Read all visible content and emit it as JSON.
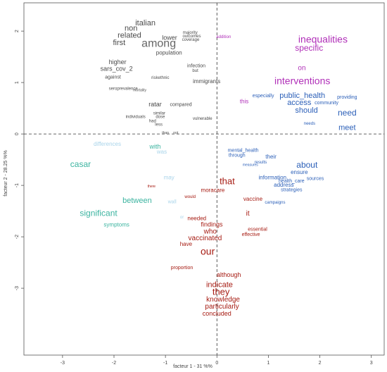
{
  "chart_data": {
    "type": "scatter",
    "title": "",
    "xlabel": "facteur 1 - 31 %%",
    "ylabel": "facteur 2 - 28.25 %%",
    "xlim": [
      -3.75,
      3.25
    ],
    "ylim": [
      -4.3,
      2.55
    ],
    "xticks": [
      -3,
      -2,
      -1,
      0,
      1,
      2,
      3
    ],
    "yticks": [
      -3,
      -2,
      -1,
      0,
      1,
      2
    ],
    "grid": false,
    "reference_lines": {
      "x": 0,
      "y": 0,
      "style": "dashed"
    },
    "colors": {
      "dark_gray": "#4a4a4a",
      "mid_gray": "#666666",
      "teal": "#3cb4a0",
      "light_blue": "#a9d4ea",
      "dark_red": "#a61b12",
      "blue": "#2b5fb8",
      "magenta": "#b02fb8",
      "axis": "#555555"
    },
    "points": [
      {
        "text": "italian",
        "x": -1.39,
        "y": 2.15,
        "size": 11,
        "color": "dark_gray"
      },
      {
        "text": "non",
        "x": -1.67,
        "y": 2.05,
        "size": 11,
        "color": "dark_gray"
      },
      {
        "text": "related",
        "x": -1.7,
        "y": 1.91,
        "size": 11,
        "color": "dark_gray"
      },
      {
        "text": "first",
        "x": -1.9,
        "y": 1.77,
        "size": 11,
        "color": "dark_gray"
      },
      {
        "text": "among",
        "x": -1.13,
        "y": 1.75,
        "size": 16,
        "color": "mid_gray"
      },
      {
        "text": "lower",
        "x": -0.92,
        "y": 1.86,
        "size": 9,
        "color": "dark_gray"
      },
      {
        "text": "majority",
        "x": -0.52,
        "y": 1.97,
        "size": 6,
        "color": "dark_gray"
      },
      {
        "text": "outcomes",
        "x": -0.49,
        "y": 1.9,
        "size": 6,
        "color": "dark_gray"
      },
      {
        "text": "coverage",
        "x": -0.51,
        "y": 1.83,
        "size": 6,
        "color": "dark_gray"
      },
      {
        "text": "population",
        "x": -0.93,
        "y": 1.57,
        "size": 8,
        "color": "dark_gray"
      },
      {
        "text": "higher",
        "x": -1.93,
        "y": 1.39,
        "size": 9,
        "color": "dark_gray"
      },
      {
        "text": "sars_cov_2",
        "x": -1.95,
        "y": 1.26,
        "size": 9,
        "color": "dark_gray"
      },
      {
        "text": "against",
        "x": -2.02,
        "y": 1.1,
        "size": 7,
        "color": "dark_gray"
      },
      {
        "text": "infection",
        "x": -0.4,
        "y": 1.32,
        "size": 7,
        "color": "dark_gray"
      },
      {
        "text": "but",
        "x": -0.42,
        "y": 1.23,
        "size": 6,
        "color": "dark_gray"
      },
      {
        "text": "riskethnic",
        "x": -1.1,
        "y": 1.09,
        "size": 6,
        "color": "dark_gray"
      },
      {
        "text": "immigrants",
        "x": -0.2,
        "y": 1.02,
        "size": 8,
        "color": "dark_gray"
      },
      {
        "text": "seroprevalence",
        "x": -1.82,
        "y": 0.88,
        "size": 6,
        "color": "dark_gray"
      },
      {
        "text": "mortality",
        "x": -1.5,
        "y": 0.85,
        "size": 5,
        "color": "dark_gray"
      },
      {
        "text": "ratar",
        "x": -1.2,
        "y": 0.57,
        "size": 9,
        "color": "dark_gray"
      },
      {
        "text": "compared",
        "x": -0.7,
        "y": 0.57,
        "size": 7,
        "color": "dark_gray"
      },
      {
        "text": "individuals",
        "x": -1.58,
        "y": 0.33,
        "size": 6,
        "color": "dark_gray"
      },
      {
        "text": "similar",
        "x": -1.12,
        "y": 0.4,
        "size": 6,
        "color": "dark_gray"
      },
      {
        "text": "dose",
        "x": -1.1,
        "y": 0.33,
        "size": 6,
        "color": "dark_gray"
      },
      {
        "text": "had",
        "x": -1.25,
        "y": 0.25,
        "size": 6,
        "color": "dark_gray"
      },
      {
        "text": "less",
        "x": -1.13,
        "y": 0.18,
        "size": 6,
        "color": "dark_gray"
      },
      {
        "text": "vulnerable",
        "x": -0.28,
        "y": 0.3,
        "size": 6,
        "color": "dark_gray"
      },
      {
        "text": "than",
        "x": -1.0,
        "y": 0.02,
        "size": 5,
        "color": "dark_gray"
      },
      {
        "text": "not",
        "x": -0.8,
        "y": 0.02,
        "size": 5,
        "color": "dark_gray"
      },
      {
        "text": "casar",
        "x": -2.65,
        "y": -0.6,
        "size": 12,
        "color": "teal"
      },
      {
        "text": "significant",
        "x": -2.3,
        "y": -1.55,
        "size": 12,
        "color": "teal"
      },
      {
        "text": "between",
        "x": -1.55,
        "y": -1.3,
        "size": 11,
        "color": "teal"
      },
      {
        "text": "with",
        "x": -1.2,
        "y": -0.25,
        "size": 9,
        "color": "teal"
      },
      {
        "text": "symptoms",
        "x": -1.95,
        "y": -1.77,
        "size": 8,
        "color": "teal"
      },
      {
        "text": "differences",
        "x": -2.13,
        "y": -0.2,
        "size": 8,
        "color": "light_blue"
      },
      {
        "text": "was",
        "x": -1.07,
        "y": -0.35,
        "size": 8,
        "color": "light_blue"
      },
      {
        "text": "may",
        "x": -0.93,
        "y": -0.85,
        "size": 8,
        "color": "light_blue"
      },
      {
        "text": "wall",
        "x": -0.87,
        "y": -1.32,
        "size": 7,
        "color": "light_blue"
      },
      {
        "text": "or",
        "x": -0.68,
        "y": -1.62,
        "size": 6,
        "color": "light_blue"
      },
      {
        "text": "this",
        "x": 0.53,
        "y": 0.63,
        "size": 8,
        "color": "magenta"
      },
      {
        "text": "inequalities",
        "x": 2.06,
        "y": 1.83,
        "size": 14,
        "color": "magenta"
      },
      {
        "text": "specific",
        "x": 1.79,
        "y": 1.66,
        "size": 12,
        "color": "magenta"
      },
      {
        "text": "on",
        "x": 1.65,
        "y": 1.28,
        "size": 10,
        "color": "magenta"
      },
      {
        "text": "interventions",
        "x": 1.66,
        "y": 1.02,
        "size": 14,
        "color": "magenta"
      },
      {
        "text": "addition",
        "x": 0.13,
        "y": 1.89,
        "size": 6,
        "color": "magenta"
      },
      {
        "text": "public_health",
        "x": 1.66,
        "y": 0.74,
        "size": 11,
        "color": "blue"
      },
      {
        "text": "access",
        "x": 1.6,
        "y": 0.6,
        "size": 11,
        "color": "blue"
      },
      {
        "text": "should",
        "x": 1.74,
        "y": 0.45,
        "size": 11,
        "color": "blue"
      },
      {
        "text": "need",
        "x": 2.53,
        "y": 0.4,
        "size": 12,
        "color": "blue"
      },
      {
        "text": "meet",
        "x": 2.53,
        "y": 0.12,
        "size": 11,
        "color": "blue"
      },
      {
        "text": "especially",
        "x": 0.9,
        "y": 0.74,
        "size": 7,
        "color": "blue"
      },
      {
        "text": "community",
        "x": 2.13,
        "y": 0.6,
        "size": 7,
        "color": "blue"
      },
      {
        "text": "providing",
        "x": 2.53,
        "y": 0.71,
        "size": 7,
        "color": "blue"
      },
      {
        "text": "needs",
        "x": 1.8,
        "y": 0.2,
        "size": 6,
        "color": "blue"
      },
      {
        "text": "about",
        "x": 1.75,
        "y": -0.61,
        "size": 12,
        "color": "blue"
      },
      {
        "text": "ensure",
        "x": 1.6,
        "y": -0.75,
        "size": 8,
        "color": "blue"
      },
      {
        "text": "information",
        "x": 1.08,
        "y": -0.85,
        "size": 8,
        "color": "blue"
      },
      {
        "text": "address",
        "x": 1.3,
        "y": -1.0,
        "size": 8,
        "color": "blue"
      },
      {
        "text": "sources",
        "x": 1.91,
        "y": -0.87,
        "size": 7,
        "color": "blue"
      },
      {
        "text": "health_care",
        "x": 1.45,
        "y": -0.92,
        "size": 7,
        "color": "blue"
      },
      {
        "text": "strategies",
        "x": 1.45,
        "y": -1.09,
        "size": 7,
        "color": "blue"
      },
      {
        "text": "their",
        "x": 1.05,
        "y": -0.45,
        "size": 8,
        "color": "blue"
      },
      {
        "text": "mental_health",
        "x": 0.51,
        "y": -0.32,
        "size": 7,
        "color": "blue"
      },
      {
        "text": "through",
        "x": 0.39,
        "y": -0.42,
        "size": 7,
        "color": "blue"
      },
      {
        "text": "results",
        "x": 0.85,
        "y": -0.55,
        "size": 6,
        "color": "blue"
      },
      {
        "text": "measures",
        "x": 0.65,
        "y": -0.6,
        "size": 5,
        "color": "blue"
      },
      {
        "text": "campaigns",
        "x": 1.13,
        "y": -1.33,
        "size": 6,
        "color": "blue"
      },
      {
        "text": "that",
        "x": 0.2,
        "y": -0.93,
        "size": 13,
        "color": "dark_red"
      },
      {
        "text": "moracare",
        "x": -0.08,
        "y": -1.1,
        "size": 8,
        "color": "dark_red"
      },
      {
        "text": "vaccine",
        "x": 0.7,
        "y": -1.27,
        "size": 8,
        "color": "dark_red"
      },
      {
        "text": "it",
        "x": 0.6,
        "y": -1.55,
        "size": 10,
        "color": "dark_red"
      },
      {
        "text": "would",
        "x": -0.52,
        "y": -1.22,
        "size": 6,
        "color": "dark_red"
      },
      {
        "text": "needed",
        "x": -0.39,
        "y": -1.65,
        "size": 8,
        "color": "dark_red"
      },
      {
        "text": "findings",
        "x": -0.1,
        "y": -1.77,
        "size": 9,
        "color": "dark_red"
      },
      {
        "text": "who",
        "x": -0.13,
        "y": -1.9,
        "size": 10,
        "color": "dark_red"
      },
      {
        "text": "vaccinated",
        "x": -0.23,
        "y": -2.03,
        "size": 10,
        "color": "dark_red"
      },
      {
        "text": "have",
        "x": -0.6,
        "y": -2.15,
        "size": 8,
        "color": "dark_red"
      },
      {
        "text": "essential",
        "x": 0.79,
        "y": -1.86,
        "size": 7,
        "color": "dark_red"
      },
      {
        "text": "effective",
        "x": 0.66,
        "y": -1.96,
        "size": 7,
        "color": "dark_red"
      },
      {
        "text": "our",
        "x": -0.18,
        "y": -2.3,
        "size": 14,
        "color": "dark_red"
      },
      {
        "text": "proportion",
        "x": -0.68,
        "y": -2.6,
        "size": 7,
        "color": "dark_red"
      },
      {
        "text": "although",
        "x": 0.23,
        "y": -2.75,
        "size": 9,
        "color": "dark_red"
      },
      {
        "text": "indicate",
        "x": 0.05,
        "y": -2.94,
        "size": 11,
        "color": "dark_red"
      },
      {
        "text": "they",
        "x": 0.08,
        "y": -3.08,
        "size": 13,
        "color": "dark_red"
      },
      {
        "text": "knowledge",
        "x": 0.12,
        "y": -3.22,
        "size": 10,
        "color": "dark_red"
      },
      {
        "text": "particularly",
        "x": 0.1,
        "y": -3.36,
        "size": 10,
        "color": "dark_red"
      },
      {
        "text": "concluded",
        "x": 0.0,
        "y": -3.5,
        "size": 9,
        "color": "dark_red"
      },
      {
        "text": "there",
        "x": -1.27,
        "y": -1.02,
        "size": 5,
        "color": "dark_red"
      }
    ]
  }
}
